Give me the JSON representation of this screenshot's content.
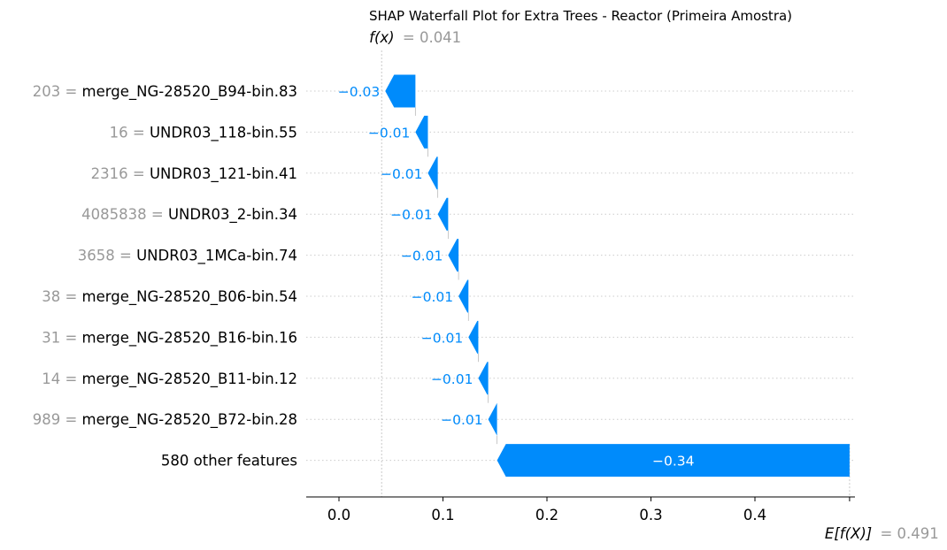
{
  "chart_data": {
    "type": "waterfall",
    "title": "SHAP Waterfall Plot for Extra Trees - Reactor (Primeira Amostra)",
    "fx_label": "f(x)",
    "fx_value": 0.041,
    "fx_text": "= 0.041",
    "efx_label": "E[f(X)]",
    "efx_value": 0.491,
    "efx_text": "= 0.491",
    "xlim": [
      -0.03,
      0.49
    ],
    "xticks": [
      0.0,
      0.1,
      0.2,
      0.3,
      0.4
    ],
    "xtick_labels": [
      "0.0",
      "0.1",
      "0.2",
      "0.3",
      "0.4"
    ],
    "features": [
      {
        "value": "203",
        "name": "merge_NG-28520_B94-bin.83",
        "shap": -0.029,
        "label": "−0.03"
      },
      {
        "value": "16",
        "name": "UNDR03_118-bin.55",
        "shap": -0.012,
        "label": "−0.01"
      },
      {
        "value": "2316",
        "name": "UNDR03_121-bin.41",
        "shap": -0.0095,
        "label": "−0.01"
      },
      {
        "value": "4085838",
        "name": "UNDR03_2-bin.34",
        "shap": -0.01,
        "label": "−0.01"
      },
      {
        "value": "3658",
        "name": "UNDR03_1MCa-bin.74",
        "shap": -0.01,
        "label": "−0.01"
      },
      {
        "value": "38",
        "name": "merge_NG-28520_B06-bin.54",
        "shap": -0.0095,
        "label": "−0.01"
      },
      {
        "value": "31",
        "name": "merge_NG-28520_B16-bin.16",
        "shap": -0.0095,
        "label": "−0.01"
      },
      {
        "value": "14",
        "name": "merge_NG-28520_B11-bin.12",
        "shap": -0.0095,
        "label": "−0.01"
      },
      {
        "value": "989",
        "name": "merge_NG-28520_B72-bin.28",
        "shap": -0.0085,
        "label": "−0.01"
      },
      {
        "value": "",
        "name": "580 other features",
        "shap": -0.339,
        "label": "−0.34"
      }
    ],
    "colors": {
      "negative": "#008bfb",
      "positive": "#ff0051"
    }
  }
}
